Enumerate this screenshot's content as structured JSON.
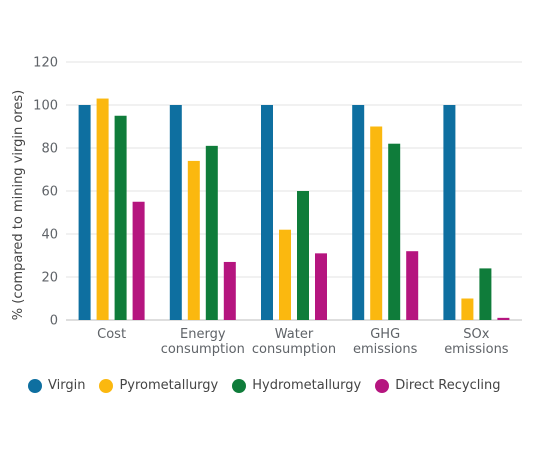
{
  "chart_data": {
    "type": "bar",
    "title": "",
    "xlabel": "",
    "ylabel": "% (compared to mining virgin ores)",
    "ylim": [
      0,
      120
    ],
    "yticks": [
      0,
      20,
      40,
      60,
      80,
      100,
      120
    ],
    "grid": true,
    "legend_position": "bottom",
    "categories": [
      [
        "Cost"
      ],
      [
        "Energy",
        "consumption"
      ],
      [
        "Water",
        "consumption"
      ],
      [
        "GHG",
        "emissions"
      ],
      [
        "SOx",
        "emissions"
      ]
    ],
    "series": [
      {
        "name": "Virgin",
        "color": "#0e6fa0",
        "values": [
          100,
          100,
          100,
          100,
          100
        ]
      },
      {
        "name": "Pyrometallurgy",
        "color": "#fbb80f",
        "values": [
          103,
          74,
          42,
          90,
          10
        ]
      },
      {
        "name": "Hydrometallurgy",
        "color": "#0f7c3a",
        "values": [
          95,
          81,
          60,
          82,
          24
        ]
      },
      {
        "name": "Direct Recycling",
        "color": "#b5157f",
        "values": [
          55,
          27,
          31,
          32,
          1
        ]
      }
    ]
  }
}
